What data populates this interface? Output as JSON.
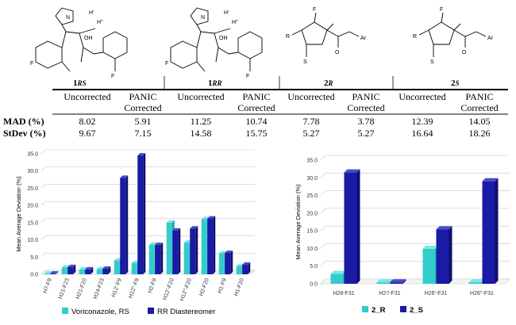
{
  "structures": {
    "labels": [
      {
        "num": "1",
        "sub": "RS"
      },
      {
        "num": "1",
        "sub": "RR"
      },
      {
        "num": "2",
        "sub": "R"
      },
      {
        "num": "2",
        "sub": "S"
      }
    ],
    "atom_labels": [
      "N",
      "OH",
      "F",
      "H'",
      "H''",
      "Ar",
      "R",
      "S",
      "O"
    ]
  },
  "table": {
    "column_headers": [
      "Uncorrected",
      "PANIC Corrected",
      "Uncorrected",
      "PANIC Corrected",
      "Uncorrected",
      "PANIC Corrected",
      "Uncorrected",
      "PANIC Corrected"
    ],
    "header_line1": [
      "Uncorrected",
      "PANIC",
      "Uncorrected",
      "PANIC",
      "Uncorrected",
      "PANIC",
      "Uncorrected",
      "PANIC"
    ],
    "header_line2": [
      "",
      "Corrected",
      "",
      "Corrected",
      "",
      "Corrected",
      "",
      "Corrected"
    ],
    "rows": [
      {
        "label": "MAD (%)",
        "values": [
          "8.02",
          "5.91",
          "11.25",
          "10.74",
          "7.78",
          "3.78",
          "12.39",
          "14.05"
        ]
      },
      {
        "label": "StDev (%)",
        "values": [
          "9.67",
          "7.15",
          "14.58",
          "15.75",
          "5.27",
          "5.27",
          "16.64",
          "18.26"
        ]
      }
    ]
  },
  "chart_data": [
    {
      "type": "bar",
      "ylabel": "Mean Average Deviation (%)",
      "ylim": [
        0,
        35
      ],
      "yticks": [
        "0.0",
        "5.0",
        "10.0",
        "15.0",
        "20.0",
        "25.0",
        "30.0",
        "35.0"
      ],
      "categories": [
        "H7-F9",
        "H21-F23",
        "H21-F20",
        "H24-F23",
        "H12'-F9",
        "H12''-F9",
        "H2-F9",
        "H12'-F20",
        "H12''-F20",
        "H2-F20",
        "H1-F9",
        "H1-F20"
      ],
      "series": [
        {
          "name": "Voriconazole, RS",
          "color": "#33cccc",
          "values": [
            0.2,
            2.0,
            1.4,
            1.5,
            4.0,
            3.3,
            8.6,
            15.0,
            9.2,
            16.0,
            6.1,
            2.4
          ]
        },
        {
          "name": "RR Diastereomer",
          "color": "#1a1aa6",
          "values": [
            0.2,
            2.1,
            1.4,
            1.6,
            28.0,
            34.5,
            8.5,
            12.7,
            13.3,
            16.2,
            6.2,
            2.8
          ]
        }
      ],
      "grid": true,
      "legend": "bottom"
    },
    {
      "type": "bar",
      "ylabel": "Mean Average Deviation (%)",
      "ylim": [
        0,
        35
      ],
      "yticks": [
        "0.0",
        "5.0",
        "10.0",
        "15.0",
        "20.0",
        "25.0",
        "30.0",
        "35.0"
      ],
      "categories": [
        "H28-F31",
        "H27-F31",
        "H26'-F31",
        "H26''-F31"
      ],
      "series": [
        {
          "name": "2_R",
          "color": "#33cccc",
          "values": [
            2.8,
            0.4,
            9.9,
            0.4
          ]
        },
        {
          "name": "2_S",
          "color": "#1a1aa6",
          "values": [
            31.5,
            0.4,
            15.4,
            29.0
          ]
        }
      ],
      "grid": true,
      "legend": "bottom"
    }
  ]
}
